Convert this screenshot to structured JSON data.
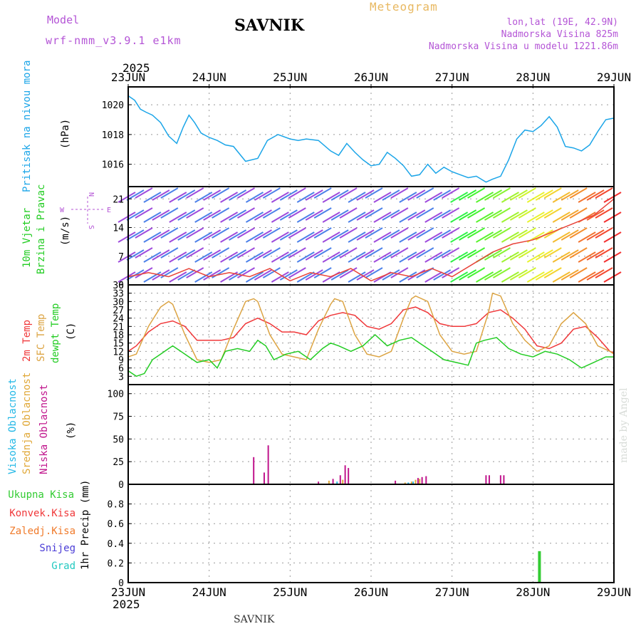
{
  "header": {
    "model_label": "Model",
    "model_name": "wrf-nmm_v3.9.1  e1km",
    "station": "SAVNIK",
    "chart_title": "Meteogram",
    "lonlat": "lon,lat (19E, 42.9N)",
    "altitude": "Nadmorska Visina 825m",
    "model_altitude": "Nadmorska Visina u modelu 1221.86m"
  },
  "footer": {
    "station": "SAVNIK",
    "credit": "made by Angel"
  },
  "colors": {
    "pressure": "#1ba5e8",
    "temp2m": "#f0383a",
    "sfc_temp": "#dca443",
    "dewpt": "#22cc22",
    "high_cloud": "#24b8e6",
    "mid_cloud": "#e0a838",
    "low_cloud": "#c0148c",
    "precip_total": "#33cc33",
    "wind_purple": "#8e2cd6",
    "wind_blue": "#2e6ce6",
    "title_orange": "#e8b860",
    "header_violet": "#b455d6"
  },
  "x_axis": {
    "year": "2025",
    "ticks": [
      "23JUN",
      "24JUN",
      "25JUN",
      "26JUN",
      "27JUN",
      "28JUN",
      "29JUN"
    ]
  },
  "panels": {
    "pressure": {
      "ylabel": "Pritisak na nivou mora",
      "unit": "(hPa)"
    },
    "wind": {
      "ylabel1": "10m Vjetar",
      "ylabel2": "Brzina i Pravac",
      "unit": "(m/s)",
      "compass": {
        "n": "N",
        "s": "S",
        "e": "E",
        "w": "W"
      }
    },
    "temp": {
      "label_2m": "2m Temp",
      "label_sfc": "SFC Temp",
      "label_dew": "dewpt Temp",
      "unit": "(C)"
    },
    "cloud": {
      "label_high": "Visoka Oblacnost",
      "label_mid": "Srednja Oblacnost",
      "label_low": "Niska Oblacnost",
      "unit": "(%)"
    },
    "precip": {
      "label_total": "Ukupna Kisa",
      "label_conv": "Konvek.Kisa",
      "label_frozen": "Zaledj.Kisa",
      "label_snow": "Snijeg",
      "label_hail": "Grad",
      "unit": "1hr Precip (mm)"
    }
  },
  "chart_data": [
    {
      "type": "line",
      "name": "pressure",
      "xlim": [
        0,
        6
      ],
      "ylim": [
        1014.5,
        1021.2
      ],
      "yticks": [
        1016,
        1018,
        1020
      ],
      "series": [
        {
          "name": "MSLP",
          "color": "#1ba5e8",
          "x": [
            0,
            0.08,
            0.15,
            0.22,
            0.3,
            0.4,
            0.5,
            0.6,
            0.68,
            0.75,
            0.82,
            0.9,
            1.0,
            1.1,
            1.2,
            1.3,
            1.45,
            1.6,
            1.72,
            1.85,
            2.0,
            2.1,
            2.2,
            2.35,
            2.5,
            2.6,
            2.7,
            2.8,
            2.9,
            3.0,
            3.1,
            3.2,
            3.3,
            3.4,
            3.5,
            3.6,
            3.7,
            3.8,
            3.9,
            4.0,
            4.1,
            4.2,
            4.3,
            4.42,
            4.5,
            4.6,
            4.7,
            4.8,
            4.9,
            5.0,
            5.1,
            5.2,
            5.3,
            5.4,
            5.5,
            5.6,
            5.7,
            5.8,
            5.9,
            6.0
          ],
          "y": [
            1020.6,
            1020.3,
            1019.7,
            1019.5,
            1019.3,
            1018.8,
            1017.9,
            1017.4,
            1018.5,
            1019.3,
            1018.8,
            1018.1,
            1017.8,
            1017.6,
            1017.3,
            1017.2,
            1016.2,
            1016.4,
            1017.6,
            1018.0,
            1017.7,
            1017.6,
            1017.7,
            1017.6,
            1016.9,
            1016.6,
            1017.4,
            1016.8,
            1016.3,
            1015.9,
            1016.0,
            1016.8,
            1016.4,
            1015.9,
            1015.2,
            1015.3,
            1016.0,
            1015.4,
            1015.8,
            1015.5,
            1015.3,
            1015.1,
            1015.2,
            1014.8,
            1015.0,
            1015.2,
            1016.3,
            1017.7,
            1018.3,
            1018.2,
            1018.6,
            1019.2,
            1018.5,
            1017.2,
            1017.1,
            1016.9,
            1017.3,
            1018.2,
            1019.0,
            1019.1
          ]
        }
      ]
    },
    {
      "type": "line",
      "name": "wind",
      "xlim": [
        0,
        6
      ],
      "ylim": [
        0,
        24
      ],
      "yticks": [
        0,
        7,
        14,
        21
      ],
      "series": [
        {
          "name": "wind speed",
          "color": "#e8443a",
          "x": [
            0,
            0.25,
            0.5,
            0.75,
            1.0,
            1.25,
            1.5,
            1.75,
            2.0,
            2.25,
            2.5,
            2.75,
            3.0,
            3.25,
            3.5,
            3.75,
            4.0,
            4.25,
            4.5,
            4.75,
            5.0,
            5.25,
            5.5,
            5.75,
            6.0
          ],
          "y": [
            2,
            3,
            2,
            4,
            2,
            3,
            2,
            4,
            1,
            3,
            2,
            4,
            1,
            3,
            2,
            4,
            2,
            5,
            8,
            10,
            11,
            13,
            15,
            17,
            21
          ]
        }
      ]
    },
    {
      "type": "line",
      "name": "temperature",
      "xlim": [
        0,
        6
      ],
      "ylim": [
        0,
        36
      ],
      "yticks": [
        3,
        6,
        9,
        12,
        15,
        18,
        21,
        24,
        27,
        30,
        33,
        36
      ],
      "series": [
        {
          "name": "2m",
          "color": "#f0383a",
          "x": [
            0,
            0.1,
            0.25,
            0.4,
            0.55,
            0.7,
            0.85,
            1.0,
            1.15,
            1.3,
            1.45,
            1.6,
            1.75,
            1.9,
            2.05,
            2.2,
            2.35,
            2.5,
            2.65,
            2.8,
            2.95,
            3.1,
            3.25,
            3.4,
            3.55,
            3.7,
            3.85,
            4.0,
            4.15,
            4.3,
            4.45,
            4.6,
            4.75,
            4.9,
            5.05,
            5.2,
            5.35,
            5.5,
            5.65,
            5.8,
            5.95,
            6.0
          ],
          "y": [
            12,
            14,
            19,
            22,
            23,
            21,
            16,
            16,
            16,
            17,
            22,
            24,
            22,
            19,
            19,
            18,
            23,
            25,
            26,
            25,
            21,
            20,
            22,
            27,
            28,
            26,
            22,
            21,
            21,
            22,
            26,
            27,
            24,
            20,
            14,
            13,
            15,
            20,
            21,
            17,
            12,
            11.5
          ]
        },
        {
          "name": "SFC",
          "color": "#dca443",
          "x": [
            0,
            0.1,
            0.25,
            0.4,
            0.5,
            0.55,
            0.7,
            0.85,
            1.0,
            1.15,
            1.3,
            1.45,
            1.55,
            1.6,
            1.75,
            1.9,
            2.05,
            2.2,
            2.35,
            2.5,
            2.55,
            2.65,
            2.8,
            2.95,
            3.1,
            3.25,
            3.4,
            3.5,
            3.55,
            3.7,
            3.85,
            4.0,
            4.15,
            4.3,
            4.45,
            4.5,
            4.6,
            4.75,
            4.9,
            5.05,
            5.2,
            5.35,
            5.5,
            5.65,
            5.8,
            5.95,
            6.0
          ],
          "y": [
            10,
            11,
            21,
            28,
            30,
            29,
            18,
            9,
            8,
            9,
            20,
            30,
            31,
            30,
            18,
            11,
            10,
            9,
            20,
            29,
            31,
            30,
            18,
            11,
            10,
            12,
            24,
            31,
            32,
            30,
            18,
            12,
            11,
            12,
            26,
            33,
            32,
            22,
            16,
            12,
            14,
            22,
            26,
            22,
            14,
            12,
            11
          ]
        },
        {
          "name": "dewpt",
          "color": "#22cc22",
          "x": [
            0,
            0.1,
            0.2,
            0.3,
            0.4,
            0.5,
            0.55,
            0.7,
            0.85,
            1.0,
            1.1,
            1.2,
            1.35,
            1.5,
            1.6,
            1.7,
            1.8,
            1.95,
            2.1,
            2.25,
            2.4,
            2.5,
            2.6,
            2.75,
            2.9,
            3.05,
            3.2,
            3.35,
            3.5,
            3.6,
            3.75,
            3.9,
            4.05,
            4.2,
            4.3,
            4.4,
            4.55,
            4.7,
            4.85,
            5.0,
            5.15,
            5.3,
            5.45,
            5.6,
            5.75,
            5.9,
            6.0
          ],
          "y": [
            5,
            3,
            4,
            9,
            11,
            13,
            14,
            11,
            8,
            9,
            6,
            12,
            13,
            12,
            16,
            14,
            9,
            11,
            12,
            9,
            13,
            15,
            14,
            12,
            14,
            18,
            14,
            16,
            17,
            15,
            12,
            9,
            8,
            7,
            15,
            16,
            17,
            13,
            11,
            10,
            12,
            11,
            9,
            6,
            8,
            10,
            10
          ]
        }
      ]
    },
    {
      "type": "bar",
      "name": "cloud",
      "xlim": [
        0,
        6
      ],
      "ylim": [
        0,
        110
      ],
      "yticks": [
        0,
        25,
        50,
        75,
        100
      ],
      "series": [
        {
          "name": "low",
          "color": "#c0148c",
          "x": [
            1.55,
            1.68,
            1.73,
            2.35,
            2.53,
            2.62,
            2.68,
            2.72,
            3.3,
            3.58,
            3.63,
            3.68,
            4.42,
            4.46,
            4.6,
            4.64
          ],
          "values": [
            30,
            13,
            43,
            3,
            6,
            10,
            21,
            18,
            4,
            7,
            8,
            9,
            10,
            10,
            10,
            10
          ]
        },
        {
          "name": "mid",
          "color": "#e0a838",
          "x": [
            2.48,
            2.65,
            3.42,
            3.5,
            3.55,
            3.6
          ],
          "values": [
            4,
            5,
            2,
            3,
            5,
            6
          ]
        },
        {
          "name": "high",
          "color": "#24b8e6",
          "x": [
            2.58,
            3.46,
            3.52
          ],
          "values": [
            3,
            2,
            3
          ]
        }
      ]
    },
    {
      "type": "bar",
      "name": "precipitation",
      "xlim": [
        0,
        6
      ],
      "ylim": [
        0,
        1.0
      ],
      "yticks": [
        0,
        0.2,
        0.4,
        0.6,
        0.8
      ],
      "series": [
        {
          "name": "total",
          "color": "#33cc33",
          "x": [
            5.08
          ],
          "values": [
            0.32
          ]
        }
      ]
    }
  ]
}
